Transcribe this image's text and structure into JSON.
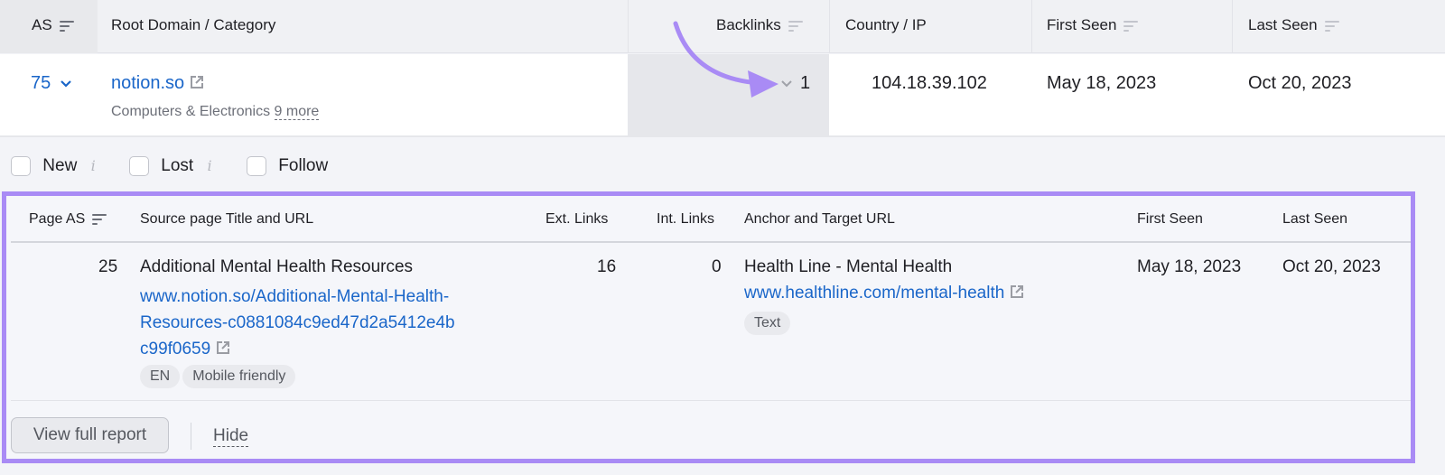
{
  "main_table": {
    "headers": {
      "as": "AS",
      "root_domain": "Root Domain / Category",
      "backlinks": "Backlinks",
      "country_ip": "Country / IP",
      "first_seen": "First Seen",
      "last_seen": "Last Seen"
    },
    "row": {
      "as": "75",
      "domain": "notion.so",
      "category": "Computers & Electronics",
      "more": "9 more",
      "backlinks": "1",
      "ip": "104.18.39.102",
      "first_seen": "May 18, 2023",
      "last_seen": "Oct 20, 2023"
    }
  },
  "filters": [
    {
      "label": "New",
      "checked": false
    },
    {
      "label": "Lost",
      "checked": false
    },
    {
      "label": "Follow",
      "checked": false
    }
  ],
  "detail_table": {
    "headers": {
      "page_as": "Page AS",
      "source": "Source page Title and URL",
      "ext_links": "Ext. Links",
      "int_links": "Int. Links",
      "anchor": "Anchor and Target URL",
      "first_seen": "First Seen",
      "last_seen": "Last Seen"
    },
    "row": {
      "page_as": "25",
      "title": "Additional Mental Health Resources",
      "url_lines": [
        "www.notion.so/Additional-Mental-Health-",
        "Resources-c0881084c9ed47d2a5412e4b",
        "c99f0659"
      ],
      "tags": [
        "EN",
        "Mobile friendly"
      ],
      "ext_links": "16",
      "int_links": "0",
      "anchor": "Health Line - Mental Health",
      "target_url": "www.healthline.com/mental-health",
      "link_type": "Text",
      "first_seen": "May 18, 2023",
      "last_seen": "Oct 20, 2023"
    }
  },
  "footer": {
    "view_full_report": "View full report",
    "hide": "Hide"
  },
  "colors": {
    "highlight": "#a98bf5",
    "link": "#1a66c9"
  }
}
